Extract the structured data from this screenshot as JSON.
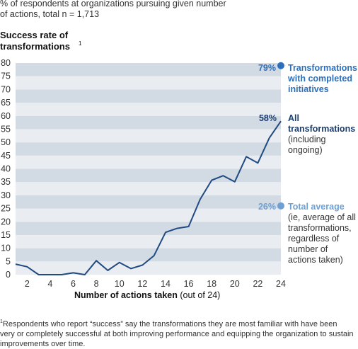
{
  "subtitle": "% of respondents at organizations pursuing given number of actions, total n = 1,713",
  "y_title": "Success rate of transformations",
  "y_title_sup": "1",
  "x_title_bold": "Number of actions taken",
  "x_title_rest": "(out of 24)",
  "footnote_sup": "1",
  "footnote": "Respondents who report “success” say the transformations they are most familiar with have been very or completely successful at both improving performance and equipping the organization to sustain improvements over time.",
  "colors": {
    "line": "#1f4a82",
    "band_dark": "#d2dae4",
    "band_light": "#e9edf2",
    "completed": "#2d6fba",
    "all": "#1a3d6e",
    "average": "#6ea0d3"
  },
  "annotations": {
    "completed": {
      "value": "79%",
      "head": "Transformations with completed initiatives"
    },
    "all": {
      "value": "58%",
      "head": "All transformations",
      "body": "(including ongoing)"
    },
    "average": {
      "value": "26%",
      "head": "Total average",
      "body": "(ie, average of all transformations, regardless of number of actions taken)"
    }
  },
  "chart_data": {
    "type": "line",
    "xlabel": "Number of actions taken (out of 24)",
    "ylabel": "Success rate of transformations",
    "xlim": [
      1,
      24
    ],
    "ylim": [
      0,
      80
    ],
    "x_ticks": [
      2,
      4,
      6,
      8,
      10,
      12,
      14,
      16,
      18,
      20,
      22,
      24
    ],
    "y_ticks": [
      0,
      5,
      10,
      15,
      20,
      25,
      30,
      35,
      40,
      45,
      50,
      55,
      60,
      65,
      70,
      75,
      80
    ],
    "grid": "horizontal bands",
    "series": [
      {
        "name": "All transformations",
        "x": [
          1,
          2,
          3,
          4,
          5,
          6,
          7,
          8,
          9,
          10,
          11,
          12,
          13,
          14,
          15,
          16,
          17,
          18,
          19,
          20,
          21,
          22,
          23,
          24
        ],
        "y": [
          4,
          3,
          0,
          0,
          0,
          0.7,
          0,
          5.3,
          1.6,
          4.6,
          2.3,
          3.6,
          7.2,
          16,
          17.5,
          18.2,
          28.5,
          35.7,
          37.4,
          35.1,
          44.6,
          42.2,
          51.7,
          58
        ]
      }
    ],
    "reference_points": [
      {
        "label": "Transformations with completed initiatives",
        "x": 24,
        "y": 79
      },
      {
        "label": "Total average",
        "x": 24,
        "y": 26
      }
    ]
  }
}
